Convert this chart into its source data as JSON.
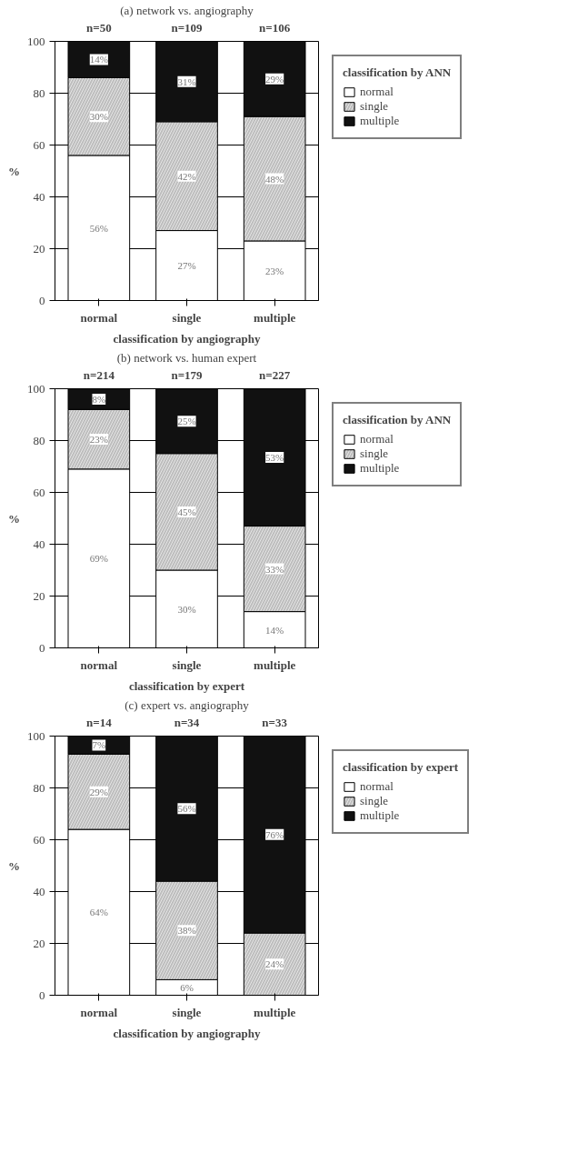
{
  "chart_data": [
    {
      "type": "bar",
      "stacked": true,
      "title": "(a) network vs. angiography",
      "xlabel": "classification by angiography",
      "ylabel": "%",
      "legend_title": "classification by ANN",
      "categories": [
        "normal",
        "single",
        "multiple"
      ],
      "ylim": [
        0,
        100
      ],
      "yticks": [
        0,
        20,
        40,
        60,
        80,
        100
      ],
      "grid": "y",
      "legend": "right",
      "series": [
        {
          "name": "normal",
          "color": "#ffffff",
          "values": [
            56,
            27,
            23
          ],
          "value_labels": [
            "56%",
            "27%",
            "23%"
          ]
        },
        {
          "name": "single",
          "color": "#bdbdbd",
          "values": [
            30,
            42,
            48
          ],
          "value_labels": [
            "30%",
            "42%",
            "48%"
          ]
        },
        {
          "name": "multiple",
          "color": "#111111",
          "values": [
            14,
            31,
            29
          ],
          "value_labels": [
            "14%",
            "31%",
            "29%"
          ]
        }
      ],
      "annotations": [
        {
          "text": "n=50",
          "x": "normal",
          "y": 100
        },
        {
          "text": "n=109",
          "x": "single",
          "y": 100
        },
        {
          "text": "n=106",
          "x": "multiple",
          "y": 100
        }
      ]
    },
    {
      "type": "bar",
      "stacked": true,
      "title": "(b) network vs. human expert",
      "xlabel": "classification by expert",
      "ylabel": "%",
      "legend_title": "classification by ANN",
      "categories": [
        "normal",
        "single",
        "multiple"
      ],
      "ylim": [
        0,
        100
      ],
      "yticks": [
        0,
        20,
        40,
        60,
        80,
        100
      ],
      "grid": "y",
      "legend": "right",
      "series": [
        {
          "name": "normal",
          "color": "#ffffff",
          "values": [
            69,
            30,
            14
          ],
          "value_labels": [
            "69%",
            "30%",
            "14%"
          ]
        },
        {
          "name": "single",
          "color": "#bdbdbd",
          "values": [
            23,
            45,
            33
          ],
          "value_labels": [
            "23%",
            "45%",
            "33%"
          ]
        },
        {
          "name": "multiple",
          "color": "#111111",
          "values": [
            8,
            25,
            53
          ],
          "value_labels": [
            "8%",
            "25%",
            "53%"
          ]
        }
      ],
      "annotations": [
        {
          "text": "n=214",
          "x": "normal",
          "y": 100
        },
        {
          "text": "n=179",
          "x": "single",
          "y": 100
        },
        {
          "text": "n=227",
          "x": "multiple",
          "y": 100
        }
      ]
    },
    {
      "type": "bar",
      "stacked": true,
      "title": "(c) expert vs. angiography",
      "xlabel": "classification by angiography",
      "ylabel": "%",
      "legend_title": "classification by expert",
      "categories": [
        "normal",
        "single",
        "multiple"
      ],
      "ylim": [
        0,
        100
      ],
      "yticks": [
        0,
        20,
        40,
        60,
        80,
        100
      ],
      "grid": "y",
      "legend": "right",
      "series": [
        {
          "name": "normal",
          "color": "#ffffff",
          "values": [
            64,
            6,
            0
          ],
          "value_labels": [
            "64%",
            "6%",
            null
          ]
        },
        {
          "name": "single",
          "color": "#bdbdbd",
          "values": [
            29,
            38,
            24
          ],
          "value_labels": [
            "29%",
            "38%",
            "24%"
          ]
        },
        {
          "name": "multiple",
          "color": "#111111",
          "values": [
            7,
            56,
            76
          ],
          "value_labels": [
            "7%",
            "56%",
            "76%"
          ]
        }
      ],
      "annotations": [
        {
          "text": "n=14",
          "x": "normal",
          "y": 100
        },
        {
          "text": "n=34",
          "x": "single",
          "y": 100
        },
        {
          "text": "n=33",
          "x": "multiple",
          "y": 100
        }
      ]
    }
  ]
}
